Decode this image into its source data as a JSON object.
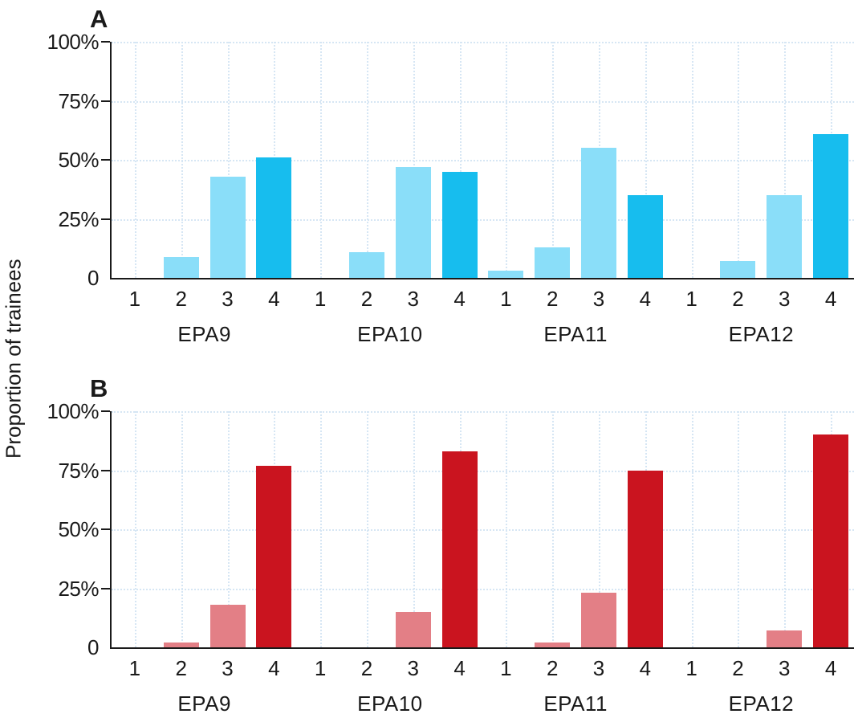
{
  "figure": {
    "y_axis_title": "Proportion of trainees"
  },
  "chart_data": [
    {
      "type": "bar",
      "panel_label": "A",
      "ylabel": "Proportion of trainees",
      "ylim": [
        0,
        100
      ],
      "ytick_labels": [
        "100%",
        "75%",
        "50%",
        "25%",
        "0"
      ],
      "grid": {
        "horizontal": true,
        "vertical": true,
        "style": "dotted",
        "color": "#d6e6f4"
      },
      "legend": "none",
      "groups": [
        "EPA9",
        "EPA10",
        "EPA11",
        "EPA12"
      ],
      "levels": [
        "1",
        "2",
        "3",
        "4"
      ],
      "series": [
        {
          "group": "EPA9",
          "values": [
            0,
            9,
            43,
            51
          ]
        },
        {
          "group": "EPA10",
          "values": [
            0,
            11,
            47,
            45
          ]
        },
        {
          "group": "EPA11",
          "values": [
            3,
            13,
            55,
            35
          ]
        },
        {
          "group": "EPA12",
          "values": [
            0,
            7,
            35,
            61
          ]
        }
      ],
      "colors": {
        "level_1_3": "#8adef9",
        "level_4": "#17bdee"
      }
    },
    {
      "type": "bar",
      "panel_label": "B",
      "ylabel": "Proportion of trainees",
      "ylim": [
        0,
        100
      ],
      "ytick_labels": [
        "100%",
        "75%",
        "50%",
        "25%",
        "0"
      ],
      "grid": {
        "horizontal": true,
        "vertical": true,
        "style": "dotted",
        "color": "#d6e6f4"
      },
      "legend": "none",
      "groups": [
        "EPA9",
        "EPA10",
        "EPA11",
        "EPA12"
      ],
      "levels": [
        "1",
        "2",
        "3",
        "4"
      ],
      "series": [
        {
          "group": "EPA9",
          "values": [
            0,
            2,
            18,
            77
          ]
        },
        {
          "group": "EPA10",
          "values": [
            0,
            0,
            15,
            83
          ]
        },
        {
          "group": "EPA11",
          "values": [
            0,
            2,
            23,
            75
          ]
        },
        {
          "group": "EPA12",
          "values": [
            0,
            0,
            7,
            90
          ]
        }
      ],
      "colors": {
        "level_1_3": "#e37f86",
        "level_4": "#ca141f"
      }
    }
  ]
}
